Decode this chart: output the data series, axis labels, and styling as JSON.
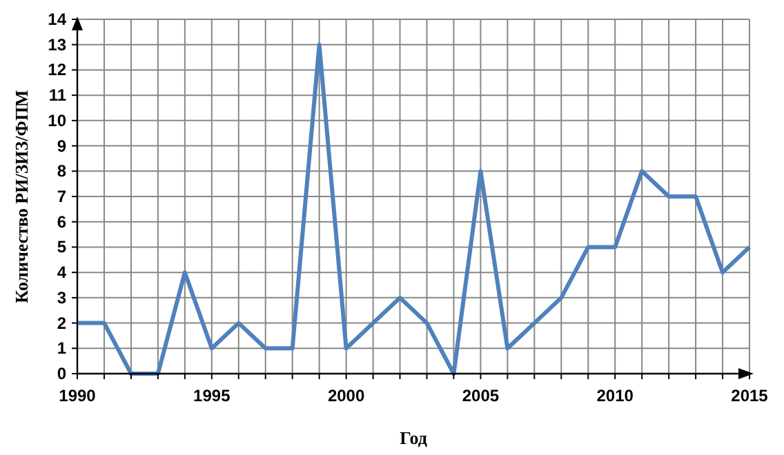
{
  "chart_data": {
    "type": "line",
    "xlabel": "Год",
    "ylabel": "Количество РИ/ЗИЗ/ФПМ",
    "x": [
      1990,
      1991,
      1992,
      1993,
      1994,
      1995,
      1996,
      1997,
      1998,
      1999,
      2000,
      2001,
      2002,
      2003,
      2004,
      2005,
      2006,
      2007,
      2008,
      2009,
      2010,
      2011,
      2012,
      2013,
      2014,
      2015
    ],
    "series": [
      {
        "color": "#4f81bd",
        "values": [
          2,
          2,
          0,
          0,
          4,
          1,
          2,
          1,
          1,
          13,
          1,
          2,
          3,
          2,
          0,
          8,
          1,
          2,
          3,
          5,
          5,
          8,
          7,
          7,
          4,
          5
        ]
      }
    ],
    "xlim": [
      1990,
      2015
    ],
    "xticks": [
      1990,
      {
        "value": 1991,
        "label": null
      },
      {
        "value": 1992,
        "label": null
      },
      {
        "value": 1993,
        "label": null
      },
      {
        "value": 1994,
        "label": null
      },
      1995,
      {
        "value": 1996,
        "label": null
      },
      {
        "value": 1997,
        "label": null
      },
      {
        "value": 1998,
        "label": null
      },
      {
        "value": 1999,
        "label": null
      },
      2000,
      {
        "value": 2001,
        "label": null
      },
      {
        "value": 2002,
        "label": null
      },
      {
        "value": 2003,
        "label": null
      },
      {
        "value": 2004,
        "label": null
      },
      2005,
      {
        "value": 2006,
        "label": null
      },
      {
        "value": 2007,
        "label": null
      },
      {
        "value": 2008,
        "label": null
      },
      {
        "value": 2009,
        "label": null
      },
      2010,
      {
        "value": 2011,
        "label": null
      },
      {
        "value": 2012,
        "label": null
      },
      {
        "value": 2013,
        "label": null
      },
      {
        "value": 2014,
        "label": null
      },
      2015
    ],
    "ylim": [
      0,
      14
    ],
    "yticks": [
      0,
      1,
      2,
      3,
      4,
      5,
      6,
      7,
      8,
      9,
      10,
      11,
      12,
      13,
      14
    ],
    "grid": true,
    "marker": "none",
    "line_style": "solid"
  }
}
